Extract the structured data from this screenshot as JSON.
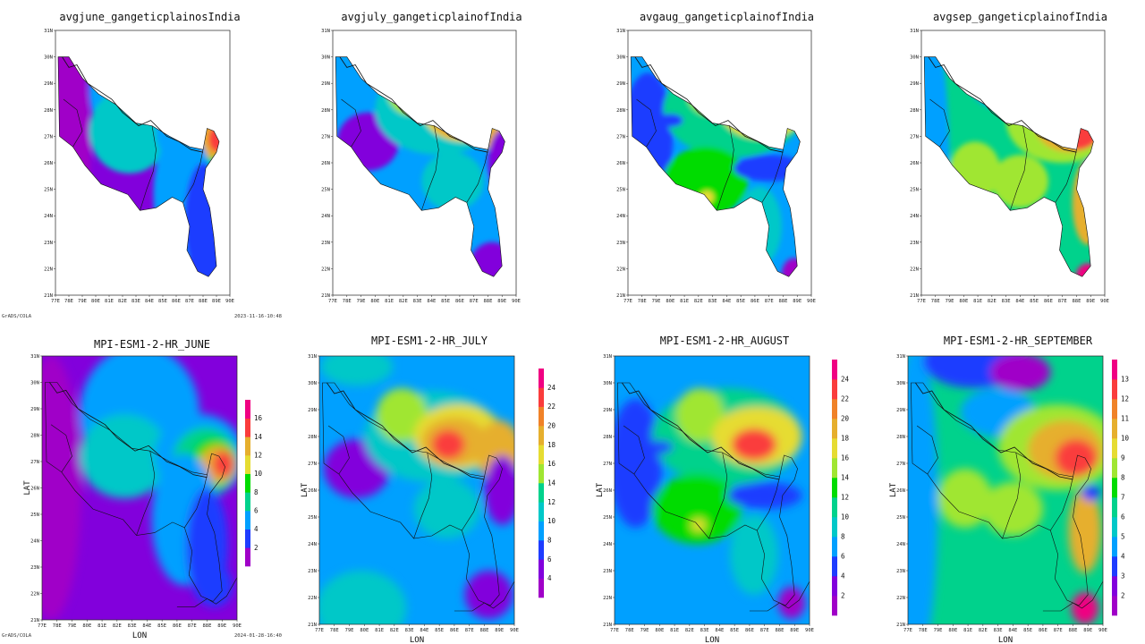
{
  "top_row": [
    {
      "title": "avgjune_gangeticplainosIndia",
      "theme": "june"
    },
    {
      "title": "avgjuly_gangeticplainofIndia",
      "theme": "july"
    },
    {
      "title": "avgaug_gangeticplainofIndia",
      "theme": "aug"
    },
    {
      "title": "avgsep_gangeticplainofIndia",
      "theme": "sep"
    }
  ],
  "bottom_row": [
    {
      "title": "MPI-ESM1-2-HR_JUNE",
      "xlabel": "LON",
      "ylabel": "LAT",
      "colorbar": [
        "2",
        "4",
        "6",
        "8",
        "10",
        "12",
        "14",
        "16"
      ],
      "theme": "june"
    },
    {
      "title": "MPI-ESM1-2-HR_JULY",
      "xlabel": "LON",
      "ylabel": "LAT",
      "colorbar": [
        "4",
        "6",
        "8",
        "10",
        "12",
        "14",
        "16",
        "18",
        "20",
        "22",
        "24"
      ],
      "theme": "july"
    },
    {
      "title": "MPI-ESM1-2-HR_AUGUST",
      "xlabel": "LON",
      "ylabel": "LAT",
      "colorbar": [
        "2",
        "4",
        "6",
        "8",
        "10",
        "12",
        "14",
        "16",
        "18",
        "20",
        "22",
        "24"
      ],
      "theme": "aug"
    },
    {
      "title": "MPI-ESM1-2-HR_SEPTEMBER",
      "xlabel": "LON",
      "ylabel": "LAT",
      "colorbar": [
        "2",
        "3",
        "4",
        "5",
        "6",
        "7",
        "8",
        "9",
        "10",
        "11",
        "12",
        "13"
      ],
      "theme": "sep"
    }
  ],
  "lon_ticks": [
    "77E",
    "78E",
    "79E",
    "80E",
    "81E",
    "82E",
    "83E",
    "84E",
    "85E",
    "86E",
    "87E",
    "88E",
    "89E",
    "90E"
  ],
  "lat_ticks": [
    "21N",
    "22N",
    "23N",
    "24N",
    "25N",
    "26N",
    "27N",
    "28N",
    "29N",
    "30N",
    "31N"
  ],
  "stamps": {
    "top_left": "GrADS/COLA",
    "top_right": "2023-11-16-10:48",
    "bottom_left": "GrADS/COLA",
    "bottom_right": "2024-01-28-16:40"
  },
  "palette": [
    "#a000c8",
    "#8200dc",
    "#1e3cff",
    "#00a0ff",
    "#00c8c8",
    "#00d28c",
    "#00dc00",
    "#a0e632",
    "#e6dc32",
    "#e6af2d",
    "#f08228",
    "#fa3c3c",
    "#f00082"
  ]
}
